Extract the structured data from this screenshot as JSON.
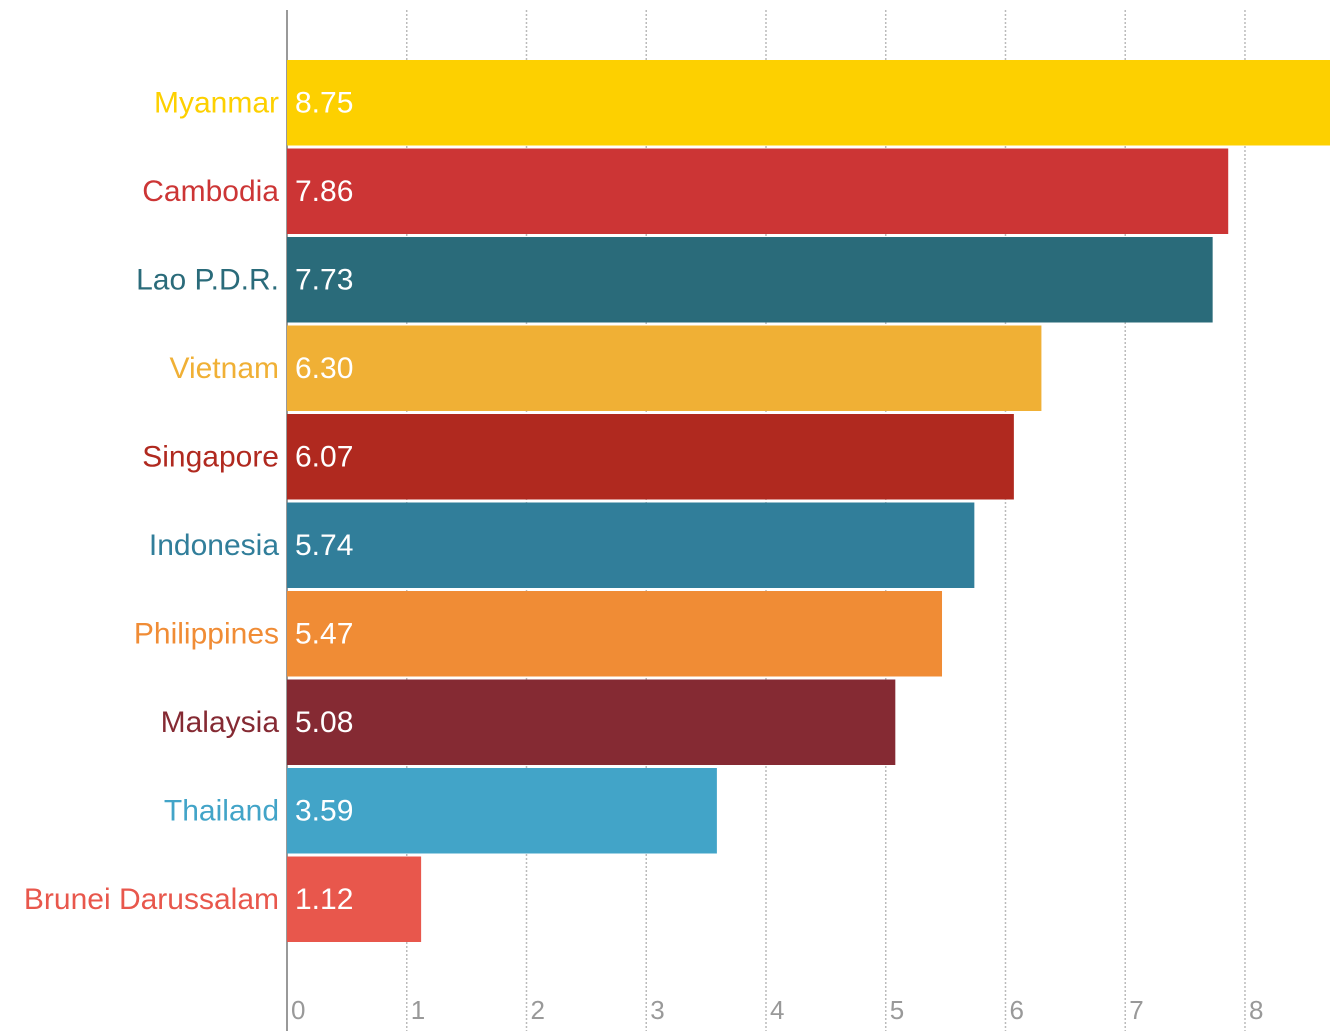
{
  "chart_data": {
    "type": "bar",
    "orientation": "horizontal",
    "categories": [
      "Myanmar",
      "Cambodia",
      "Lao P.D.R.",
      "Vietnam",
      "Singapore",
      "Indonesia",
      "Philippines",
      "Malaysia",
      "Thailand",
      "Brunei Darussalam"
    ],
    "values": [
      8.75,
      7.86,
      7.73,
      6.3,
      6.07,
      5.74,
      5.47,
      5.08,
      3.59,
      1.12
    ],
    "value_labels": [
      "8.75",
      "7.86",
      "7.73",
      "6.30",
      "6.07",
      "5.74",
      "5.47",
      "5.08",
      "3.59",
      "1.12"
    ],
    "colors": [
      "#fdd000",
      "#cc3535",
      "#2a6b7a",
      "#f0b035",
      "#b0291f",
      "#317e9a",
      "#f08c35",
      "#852a33",
      "#42a4c8",
      "#e8574c"
    ],
    "xlim": [
      0,
      8.71
    ],
    "xticks": [
      0,
      1,
      2,
      3,
      4,
      5,
      6,
      7,
      8
    ],
    "grid": true
  }
}
